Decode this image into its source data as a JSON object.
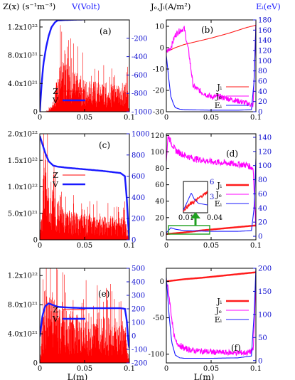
{
  "header": {
    "left_ylabel": "Z(x) (s⁻¹m⁻³)",
    "left_ylabel2": "V(Volt)",
    "right_ylabel": "Jₑ,Jᵢ(A/m²)",
    "right_ylabel2": "Eᵢ(eV)"
  },
  "colors": {
    "Z": "#ff0000",
    "V": "#1a1aff",
    "Ji": "#ff1a1a",
    "Je": "#ff00ff",
    "Ei": "#1a1aff",
    "inset_arrow": "#20a020",
    "inset_box": "#20a020"
  },
  "chart_data": [
    {
      "id": "a",
      "panel_label": "(a)",
      "type": "line",
      "xlabel": "",
      "xlim": [
        0,
        0.1
      ],
      "xticks": [
        "0",
        "0.05",
        "0.1"
      ],
      "left_axis": {
        "ylim": [
          0,
          1.3e+22
        ],
        "ticks": [
          0,
          4e+21,
          8e+21,
          1.2e+22
        ],
        "tick_labels": [
          "0",
          "4.0x10²¹",
          "8.0x10²¹",
          "1.2x10²²"
        ]
      },
      "right_axis": {
        "ylim": [
          -1000,
          0
        ],
        "ticks": [
          -1000,
          -800,
          -600,
          -400,
          -200
        ],
        "tick_labels": [
          "-1000",
          "-800",
          "-600",
          "-400",
          "-200"
        ]
      },
      "legend": [
        "Z",
        "V"
      ],
      "series": [
        {
          "name": "Z",
          "axis": "left",
          "style": "noise",
          "profile_x": [
            0,
            0.005,
            0.01,
            0.015,
            0.02,
            0.025,
            0.03,
            0.035,
            0.04,
            0.05,
            0.06,
            0.07,
            0.08,
            0.09,
            0.098,
            0.1
          ],
          "profile_y": [
            0,
            0,
            2e+20,
            1e+21,
            3.5e+21,
            5e+21,
            4.8e+21,
            4e+21,
            3.5e+21,
            3e+21,
            2.8e+21,
            2.6e+21,
            2.5e+21,
            2.4e+21,
            2.4e+21,
            0
          ]
        },
        {
          "name": "V",
          "axis": "right",
          "style": "thick",
          "x": [
            0,
            0.002,
            0.004,
            0.007,
            0.01,
            0.013,
            0.017,
            0.02,
            0.03,
            0.05,
            0.07,
            0.09,
            0.1
          ],
          "y": [
            -1000,
            -700,
            -480,
            -300,
            -170,
            -80,
            -25,
            -5,
            0,
            5,
            10,
            18,
            25
          ]
        }
      ]
    },
    {
      "id": "b",
      "panel_label": "(b)",
      "type": "line",
      "xlabel": "",
      "xlim": [
        0,
        0.1
      ],
      "xticks": [
        "0",
        "0.05",
        "0.1"
      ],
      "left_axis": {
        "ylim": [
          -30,
          13
        ],
        "ticks": [
          -30,
          -20,
          -10,
          0,
          10
        ],
        "tick_labels": [
          "-30",
          "-20",
          "-10",
          "0",
          "10"
        ]
      },
      "right_axis": {
        "ylim": [
          0,
          180
        ],
        "ticks": [
          0,
          20,
          40,
          60,
          80,
          100,
          120,
          140,
          160,
          180
        ],
        "tick_labels": [
          "0",
          "20",
          "40",
          "60",
          "80",
          "100",
          "120",
          "140",
          "160",
          "180"
        ]
      },
      "legend": [
        "Ji",
        "Je",
        "Ei"
      ],
      "series": [
        {
          "name": "Ji",
          "axis": "left",
          "style": "line",
          "x": [
            0,
            0.01,
            0.02,
            0.03,
            0.05,
            0.07,
            0.09,
            0.1
          ],
          "y": [
            -2,
            0,
            1.5,
            2.5,
            4.5,
            6.8,
            9.5,
            10.5
          ]
        },
        {
          "name": "Je",
          "axis": "left",
          "style": "noisyline",
          "x": [
            0,
            0.005,
            0.01,
            0.015,
            0.02,
            0.025,
            0.03,
            0.04,
            0.05,
            0.06,
            0.07,
            0.08,
            0.09,
            0.097,
            0.1
          ],
          "y": [
            -2,
            0,
            6,
            8,
            9,
            -2,
            -18,
            -21,
            -23,
            -23,
            -24,
            -25,
            -26,
            -27,
            11
          ]
        },
        {
          "name": "Ei",
          "axis": "right",
          "style": "line",
          "x": [
            0,
            0.003,
            0.005,
            0.008,
            0.01,
            0.015,
            0.02,
            0.05,
            0.08,
            0.095,
            0.098,
            0.1
          ],
          "y": [
            110,
            60,
            30,
            15,
            8,
            5,
            4,
            3,
            3,
            4,
            60,
            170
          ]
        }
      ]
    },
    {
      "id": "c",
      "panel_label": "(c)",
      "type": "line",
      "xlabel": "",
      "xlim": [
        0,
        0.1
      ],
      "xticks": [
        "0",
        "0.05",
        "0.1"
      ],
      "left_axis": {
        "ylim": [
          0,
          2e+22
        ],
        "ticks": [
          0,
          5e+21,
          1e+22,
          1.5e+22,
          2e+22
        ],
        "tick_labels": [
          "0",
          "5.0x10²¹",
          "1.0x10²²",
          "1.5x10²²",
          "2.0x10²²"
        ]
      },
      "right_axis": {
        "ylim": [
          0,
          1000
        ],
        "ticks": [
          0,
          200,
          400,
          600,
          800,
          1000
        ],
        "tick_labels": [
          "0",
          "200",
          "400",
          "600",
          "800",
          "1000"
        ]
      },
      "legend": [
        "Z",
        "V"
      ],
      "series": [
        {
          "name": "Z",
          "axis": "left",
          "style": "noise",
          "profile_x": [
            0,
            0.003,
            0.006,
            0.01,
            0.014,
            0.02,
            0.03,
            0.05,
            0.07,
            0.09,
            0.095,
            0.1
          ],
          "profile_y": [
            0,
            7e+21,
            1e+22,
            9e+21,
            6e+21,
            4.5e+21,
            3.5e+21,
            3e+21,
            2.8e+21,
            2.6e+21,
            3e+21,
            0
          ]
        },
        {
          "name": "V",
          "axis": "right",
          "style": "thick",
          "x": [
            0,
            0.003,
            0.006,
            0.01,
            0.015,
            0.02,
            0.03,
            0.05,
            0.07,
            0.09,
            0.095,
            0.097,
            0.099,
            0.1
          ],
          "y": [
            980,
            900,
            820,
            740,
            700,
            690,
            680,
            665,
            650,
            630,
            600,
            400,
            100,
            0
          ]
        }
      ]
    },
    {
      "id": "d",
      "panel_label": "(d)",
      "type": "line",
      "xlabel": "",
      "xlim": [
        0,
        0.1
      ],
      "xticks": [
        "0",
        "0.05",
        "0.1"
      ],
      "left_axis": {
        "ylim": [
          -7,
          122
        ],
        "ticks": [
          0,
          20,
          40,
          60,
          80,
          100,
          120
        ],
        "tick_labels": [
          "0",
          "20",
          "40",
          "60",
          "80",
          "100",
          "120"
        ]
      },
      "right_axis": {
        "ylim": [
          -5,
          145
        ],
        "ticks": [
          0,
          20,
          40,
          60,
          80,
          100,
          120,
          140
        ],
        "tick_labels": [
          "0",
          "20",
          "40",
          "60",
          "80",
          "100",
          "120",
          "140"
        ]
      },
      "legend": [
        "Ji",
        "Je",
        "Ei"
      ],
      "series": [
        {
          "name": "Ji",
          "axis": "left",
          "style": "thick",
          "x": [
            0,
            0.02,
            0.04,
            0.06,
            0.08,
            0.1
          ],
          "y": [
            0,
            2,
            4.5,
            6.5,
            8.5,
            10.5
          ]
        },
        {
          "name": "Je",
          "axis": "left",
          "style": "noisyline",
          "x": [
            0,
            0.002,
            0.005,
            0.01,
            0.02,
            0.03,
            0.05,
            0.07,
            0.09,
            0.097,
            0.1
          ],
          "y": [
            90,
            120,
            112,
            102,
            96,
            92,
            88,
            86,
            84,
            80,
            5
          ]
        },
        {
          "name": "Ei",
          "axis": "right",
          "style": "line",
          "x": [
            0,
            0.005,
            0.01,
            0.02,
            0.05,
            0.08,
            0.095,
            0.098,
            0.1
          ],
          "y": [
            5,
            12,
            10,
            8,
            7,
            7,
            8,
            40,
            110
          ]
        }
      ],
      "inset": {
        "xlim": [
          0,
          0.04
        ],
        "ylim": [
          0,
          6
        ],
        "xtick_labels": [
          "0.01",
          "0.04"
        ],
        "ytick_labels": [
          "3",
          "6"
        ],
        "series": [
          {
            "name": "Ji",
            "x": [
              0,
              0.01,
              0.02,
              0.03,
              0.04
            ],
            "y": [
              0.5,
              1.5,
              2.3,
              3.2,
              4.0
            ]
          },
          {
            "name": "Ei",
            "x": [
              0,
              0.008,
              0.013,
              0.018,
              0.025,
              0.04
            ],
            "y": [
              0.5,
              2.5,
              3.8,
              2.6,
              1.8,
              1.5
            ]
          }
        ]
      }
    },
    {
      "id": "e",
      "panel_label": "(e)",
      "type": "line",
      "xlabel": "L(m)",
      "xlim": [
        0,
        0.1
      ],
      "xticks": [
        "0",
        "0.05",
        "0.1"
      ],
      "left_axis": {
        "ylim": [
          0,
          1.3e+22
        ],
        "ticks": [
          0,
          4e+21,
          8e+21,
          1.2e+22
        ],
        "tick_labels": [
          "0",
          "4.0x10²¹",
          "8.0x10²¹",
          "1.2x10²²"
        ]
      },
      "right_axis": {
        "ylim": [
          -200,
          500
        ],
        "ticks": [
          -200,
          -100,
          0,
          100,
          200,
          300,
          400,
          500
        ],
        "tick_labels": [
          "-200",
          "-100",
          "0",
          "100",
          "200",
          "300",
          "400",
          "500"
        ]
      },
      "legend": [
        "Z",
        "V"
      ],
      "series": [
        {
          "name": "Z",
          "axis": "left",
          "style": "noise",
          "profile_x": [
            0,
            0.003,
            0.006,
            0.01,
            0.015,
            0.02,
            0.03,
            0.05,
            0.07,
            0.09,
            0.095,
            0.1
          ],
          "profile_y": [
            0,
            4e+21,
            6e+21,
            6.5e+21,
            6e+21,
            5e+21,
            4.5e+21,
            4.2e+21,
            4e+21,
            3.8e+21,
            3.5e+21,
            0
          ]
        },
        {
          "name": "V",
          "axis": "right",
          "style": "thick",
          "x": [
            0,
            0.003,
            0.006,
            0.01,
            0.014,
            0.02,
            0.03,
            0.05,
            0.07,
            0.09,
            0.095,
            0.097,
            0.099,
            0.1
          ],
          "y": [
            -5,
            150,
            220,
            240,
            230,
            215,
            210,
            205,
            205,
            205,
            200,
            120,
            -60,
            -90
          ]
        }
      ]
    },
    {
      "id": "f",
      "panel_label": "(f)",
      "type": "line",
      "xlabel": "L(m)",
      "xlim": [
        0,
        0.1
      ],
      "xticks": [
        "0",
        "0.05",
        "0.1"
      ],
      "left_axis": {
        "ylim": [
          -112,
          18
        ],
        "ticks": [
          -100,
          -50,
          0
        ],
        "tick_labels": [
          "-100",
          "-50",
          "0"
        ]
      },
      "right_axis": {
        "ylim": [
          -5,
          200
        ],
        "ticks": [
          0,
          50,
          100,
          150,
          200
        ],
        "tick_labels": [
          "0",
          "50",
          "100",
          "150",
          "200"
        ]
      },
      "legend": [
        "Ji",
        "Je",
        "Ei"
      ],
      "series": [
        {
          "name": "Ji",
          "axis": "left",
          "style": "thick",
          "x": [
            0,
            0.02,
            0.04,
            0.06,
            0.08,
            0.1
          ],
          "y": [
            0,
            3,
            5,
            7.5,
            10,
            12.5
          ]
        },
        {
          "name": "Je",
          "axis": "left",
          "style": "noisyline",
          "x": [
            0,
            0.002,
            0.005,
            0.008,
            0.01,
            0.015,
            0.02,
            0.03,
            0.05,
            0.07,
            0.09,
            0.097,
            0.1
          ],
          "y": [
            0,
            -10,
            -40,
            -70,
            -82,
            -88,
            -92,
            -95,
            -97,
            -98,
            -98,
            -95,
            0
          ]
        },
        {
          "name": "Ei",
          "axis": "right",
          "style": "line",
          "x": [
            0,
            0.003,
            0.006,
            0.01,
            0.015,
            0.02,
            0.05,
            0.08,
            0.095,
            0.098,
            0.1
          ],
          "y": [
            180,
            100,
            40,
            12,
            6,
            5,
            5,
            6,
            10,
            100,
            200
          ]
        }
      ]
    }
  ]
}
